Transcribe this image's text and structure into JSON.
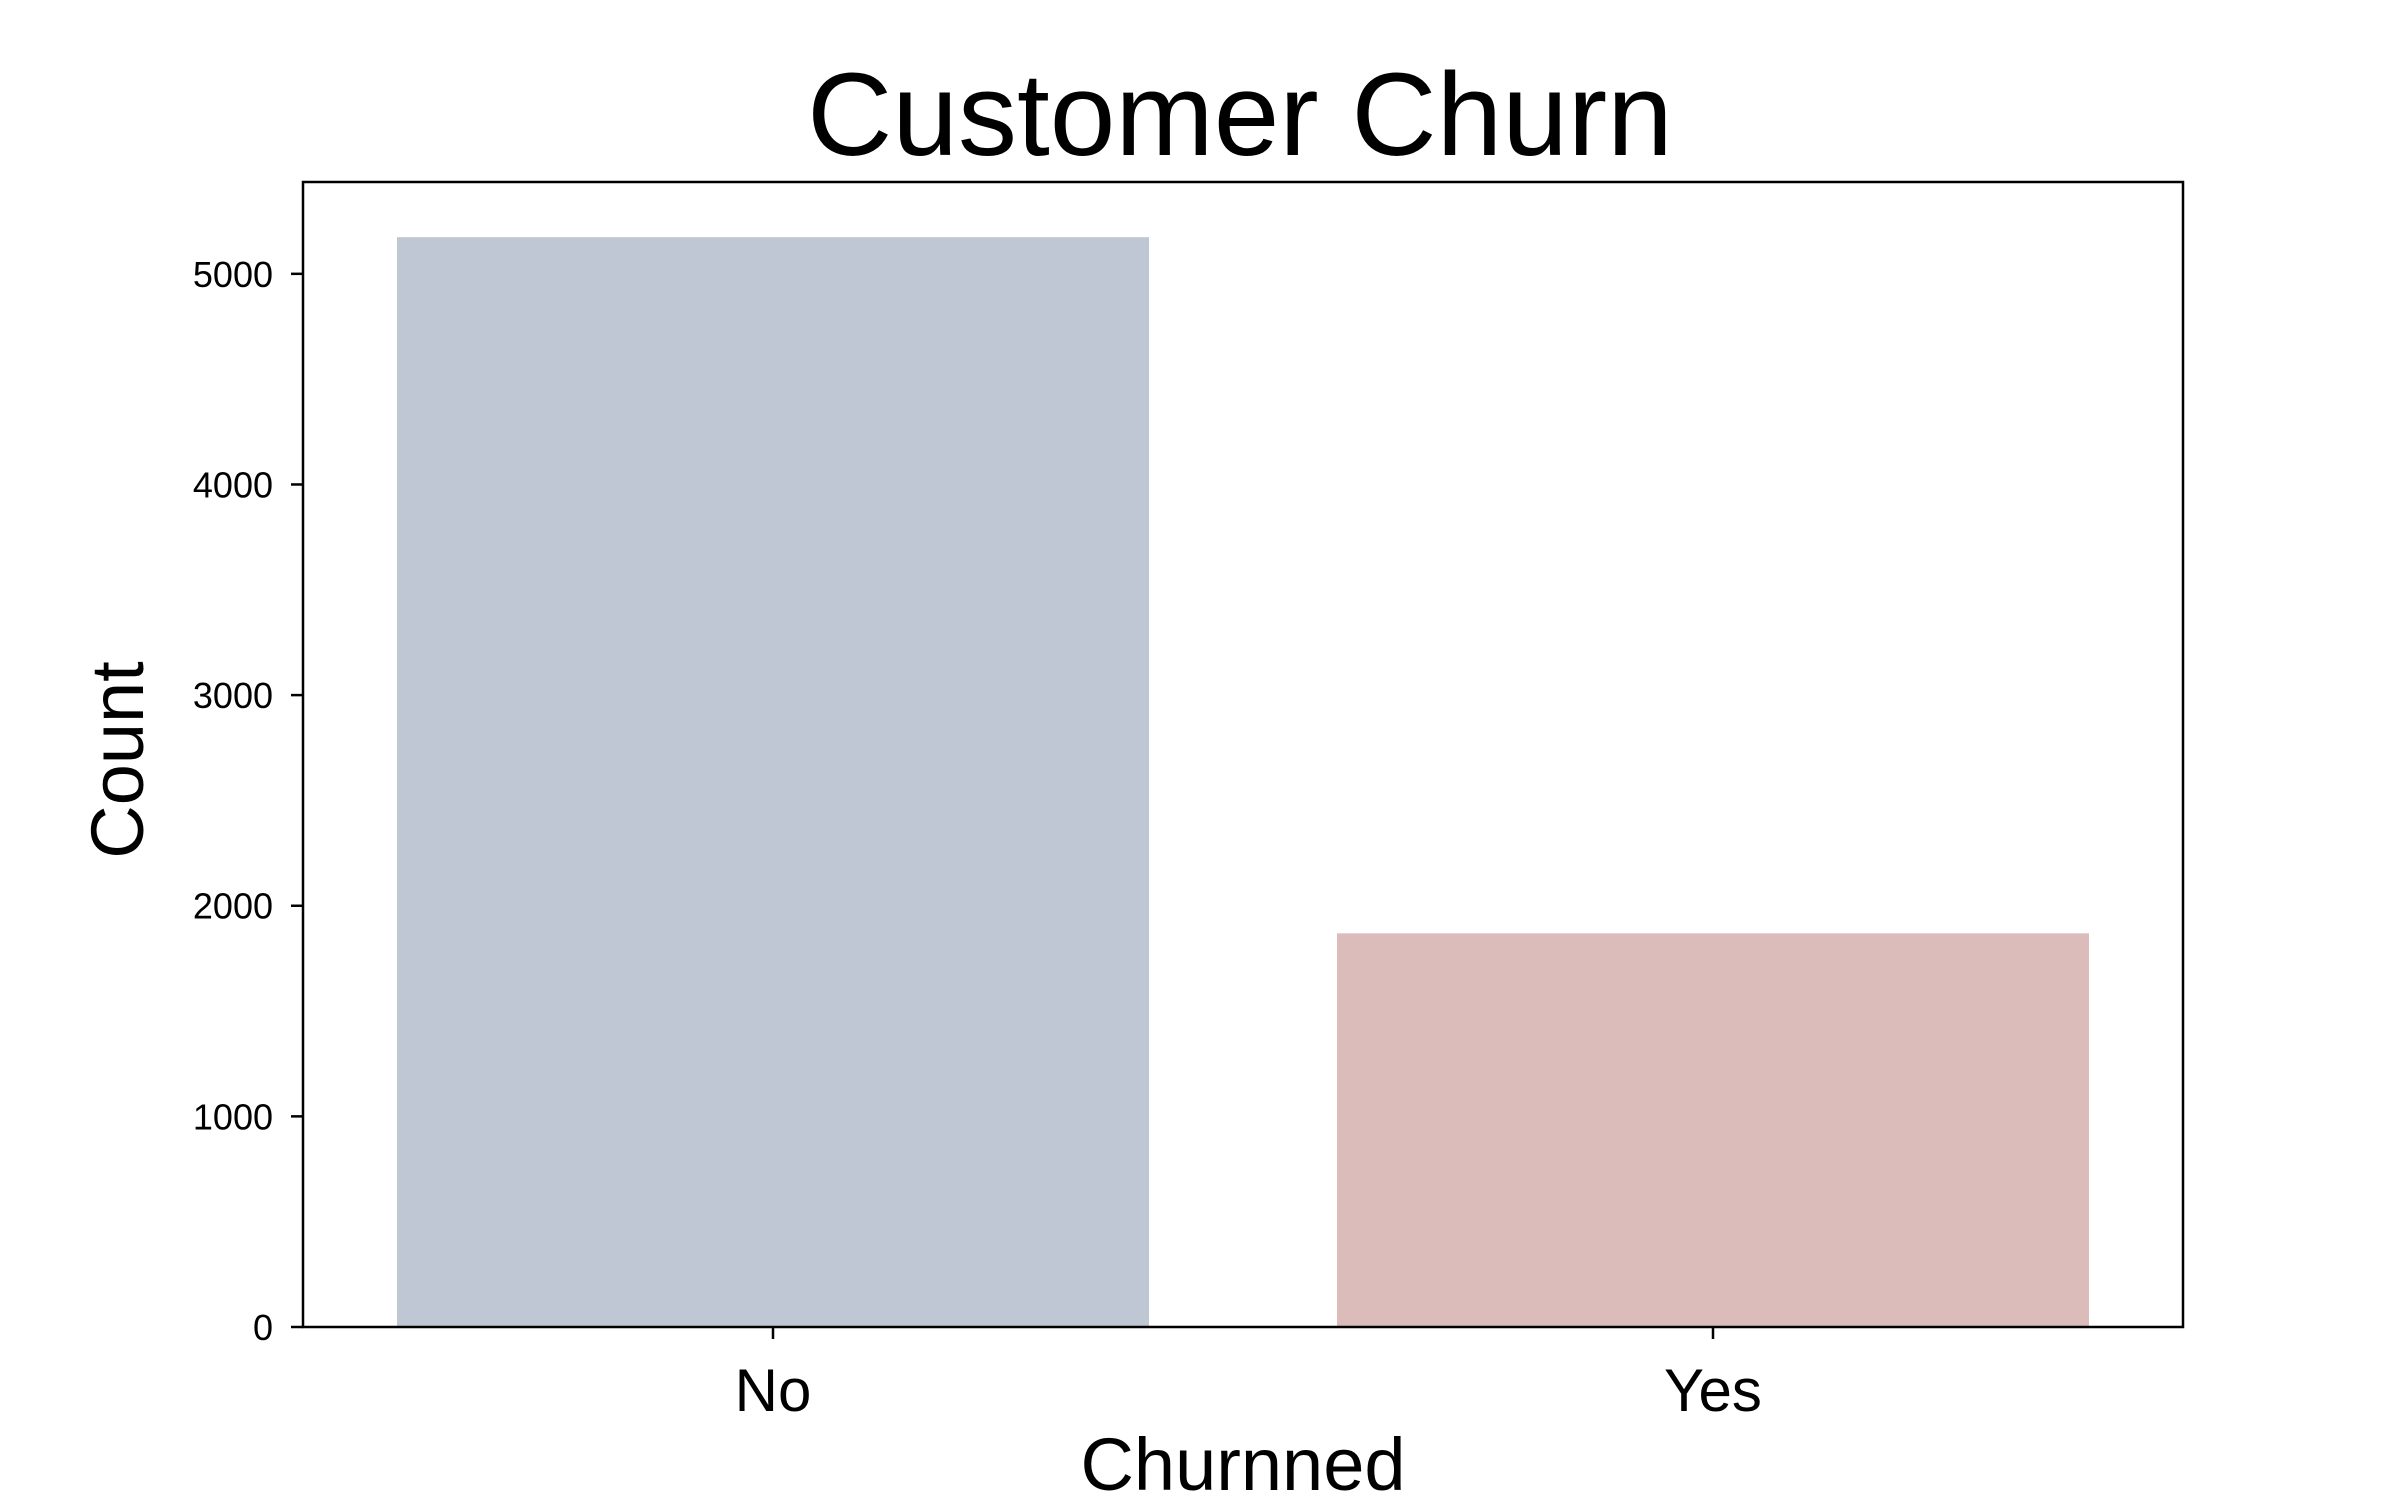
{
  "chart_data": {
    "type": "bar",
    "title": "Customer Churn",
    "xlabel": "Churnned",
    "ylabel": "Count",
    "categories": [
      "No",
      "Yes"
    ],
    "values": [
      5174,
      1869
    ],
    "colors": [
      "#bfc7d4",
      "#dbbcbb"
    ],
    "ylim": [
      0,
      5436
    ],
    "yticks": [
      0,
      1000,
      2000,
      3000,
      4000,
      5000
    ],
    "grid": false,
    "legend": "none"
  }
}
